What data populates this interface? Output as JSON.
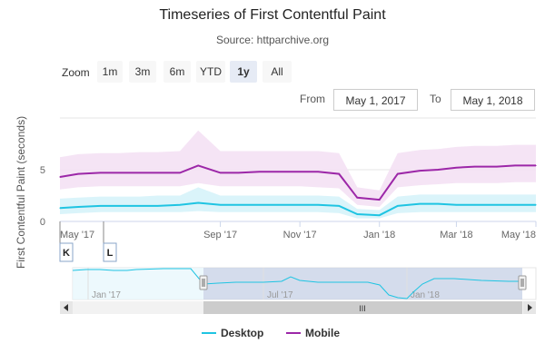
{
  "header": {
    "title": "Timeseries of First Contentful Paint",
    "subtitle": "Source: httparchive.org"
  },
  "zoom": {
    "label": "Zoom",
    "buttons": [
      "1m",
      "3m",
      "6m",
      "YTD",
      "1y",
      "All"
    ],
    "active": "1y"
  },
  "range": {
    "from_label": "From",
    "from_value": "May 1, 2017",
    "to_label": "To",
    "to_value": "May 1, 2018"
  },
  "flags": [
    "K",
    "L"
  ],
  "navigator": {
    "labels": [
      "Jan '17",
      "Jul '17",
      "Jan '18"
    ],
    "scroll_grip": "III"
  },
  "colors": {
    "desktop": "#1fc4e2",
    "mobile": "#9c27a8",
    "desktop_band": "#d6f3fa",
    "mobile_band": "#f4e1f4"
  },
  "chart_data": {
    "type": "line",
    "title": "Timeseries of First Contentful Paint",
    "subtitle": "Source: httparchive.org",
    "ylabel": "First Contentful Paint (seconds)",
    "xlabel": "",
    "x_tick_labels": [
      "May '17",
      "Sep '17",
      "Nov '17",
      "Jan '18",
      "Mar '18",
      "May '18"
    ],
    "y_tick_labels": [
      "0",
      "5"
    ],
    "ylim": [
      0,
      10
    ],
    "legend": [
      "Desktop",
      "Mobile"
    ],
    "legend_position": "bottom",
    "grid": true,
    "x": [
      "2017-05-01",
      "2017-05-15",
      "2017-06-01",
      "2017-06-15",
      "2017-07-01",
      "2017-07-15",
      "2017-08-01",
      "2017-08-15",
      "2017-09-01",
      "2017-09-15",
      "2017-10-01",
      "2017-10-15",
      "2017-11-01",
      "2017-11-15",
      "2017-12-01",
      "2017-12-15",
      "2018-01-01",
      "2018-01-15",
      "2018-02-01",
      "2018-02-15",
      "2018-03-01",
      "2018-03-15",
      "2018-04-01",
      "2018-04-15",
      "2018-05-01"
    ],
    "series": [
      {
        "name": "Mobile",
        "values": [
          4.3,
          4.6,
          4.7,
          4.7,
          4.7,
          4.7,
          4.7,
          5.4,
          4.7,
          4.7,
          4.8,
          4.8,
          4.8,
          4.8,
          4.6,
          2.3,
          2.1,
          4.6,
          4.9,
          5.0,
          5.2,
          5.3,
          5.3,
          5.4,
          5.4
        ],
        "band_low": [
          3.1,
          3.3,
          3.4,
          3.4,
          3.4,
          3.4,
          3.4,
          3.7,
          3.4,
          3.4,
          3.4,
          3.4,
          3.4,
          3.3,
          3.2,
          1.6,
          1.4,
          3.3,
          3.5,
          3.6,
          3.7,
          3.7,
          3.7,
          3.8,
          3.8
        ],
        "band_high": [
          6.2,
          6.5,
          6.6,
          6.6,
          6.7,
          6.7,
          6.8,
          8.8,
          6.8,
          6.8,
          6.8,
          6.8,
          6.8,
          6.8,
          6.6,
          3.3,
          3.0,
          6.6,
          6.9,
          7.0,
          7.2,
          7.3,
          7.3,
          7.4,
          7.4
        ]
      },
      {
        "name": "Desktop",
        "values": [
          1.3,
          1.4,
          1.5,
          1.5,
          1.5,
          1.5,
          1.6,
          1.8,
          1.6,
          1.6,
          1.6,
          1.6,
          1.6,
          1.6,
          1.5,
          0.7,
          0.6,
          1.5,
          1.7,
          1.7,
          1.6,
          1.6,
          1.6,
          1.6,
          1.6
        ],
        "band_low": [
          0.7,
          0.8,
          0.9,
          0.9,
          0.9,
          0.9,
          0.9,
          1.0,
          0.9,
          0.9,
          0.9,
          0.9,
          0.9,
          0.9,
          0.8,
          0.3,
          0.3,
          0.8,
          0.9,
          0.9,
          0.9,
          0.9,
          0.9,
          0.9,
          0.9
        ],
        "band_high": [
          2.2,
          2.3,
          2.4,
          2.4,
          2.4,
          2.5,
          2.5,
          3.3,
          2.5,
          2.5,
          2.5,
          2.5,
          2.5,
          2.5,
          2.4,
          1.2,
          1.1,
          2.4,
          2.6,
          2.6,
          2.6,
          2.6,
          2.6,
          2.6,
          2.6
        ]
      }
    ]
  }
}
